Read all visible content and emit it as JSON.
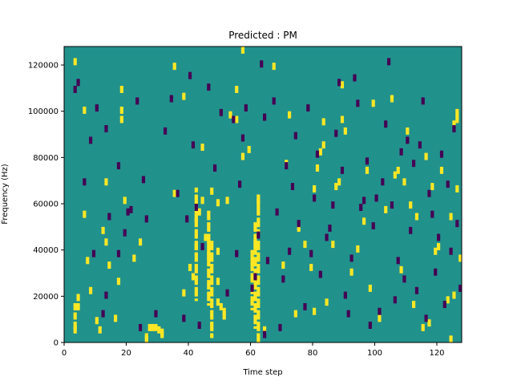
{
  "chart_data": {
    "type": "heatmap",
    "title": "Predicted : PM",
    "xlabel": "Time step",
    "ylabel": "Frequency (Hz)",
    "xlim": [
      0,
      128
    ],
    "ylim": [
      0,
      128000
    ],
    "x_ticks": [
      "0",
      "20",
      "40",
      "60",
      "80",
      "100",
      "120"
    ],
    "y_ticks": [
      "0",
      "20000",
      "40000",
      "60000",
      "80000",
      "100000",
      "120000"
    ],
    "grid": false,
    "legend": "none",
    "rows": 128,
    "cols": 128,
    "colors": {
      "background": "#21918c",
      "low": "#440154",
      "high": "#fde725"
    },
    "high_cells": [
      [
        3,
        120
      ],
      [
        3,
        4
      ],
      [
        3,
        6
      ],
      [
        3,
        10
      ],
      [
        3,
        14
      ],
      [
        4,
        14
      ],
      [
        4,
        18
      ],
      [
        6,
        99
      ],
      [
        6,
        54
      ],
      [
        7,
        34
      ],
      [
        8,
        21
      ],
      [
        10,
        8
      ],
      [
        11,
        4
      ],
      [
        12,
        47
      ],
      [
        13,
        68
      ],
      [
        13,
        42
      ],
      [
        14,
        32
      ],
      [
        16,
        9
      ],
      [
        17,
        25
      ],
      [
        18,
        99
      ],
      [
        18,
        108
      ],
      [
        18,
        95
      ],
      [
        19,
        60
      ],
      [
        22,
        35
      ],
      [
        24,
        42
      ],
      [
        26,
        0
      ],
      [
        26,
        1
      ],
      [
        27,
        5
      ],
      [
        28,
        5
      ],
      [
        29,
        5
      ],
      [
        30,
        4
      ],
      [
        31,
        2
      ],
      [
        31,
        3
      ],
      [
        35,
        63
      ],
      [
        35,
        118
      ],
      [
        38,
        105
      ],
      [
        38,
        20
      ],
      [
        40,
        31
      ],
      [
        41,
        27
      ],
      [
        42,
        40
      ],
      [
        42,
        52
      ],
      [
        43,
        55
      ],
      [
        44,
        83
      ],
      [
        44,
        60
      ],
      [
        45,
        44
      ],
      [
        46,
        42
      ],
      [
        46,
        36
      ],
      [
        47,
        64
      ],
      [
        49,
        16
      ],
      [
        49,
        59
      ],
      [
        49,
        38
      ],
      [
        49,
        25
      ],
      [
        50,
        14
      ],
      [
        51,
        12
      ],
      [
        51,
        10
      ],
      [
        52,
        60
      ],
      [
        53,
        97
      ],
      [
        55,
        108
      ],
      [
        55,
        95
      ],
      [
        57,
        125
      ],
      [
        57,
        79
      ],
      [
        59,
        82
      ],
      [
        60,
        33
      ],
      [
        61,
        40
      ],
      [
        61,
        42
      ],
      [
        62,
        59
      ],
      [
        64,
        4
      ],
      [
        67,
        118
      ],
      [
        70,
        32
      ],
      [
        71,
        76
      ],
      [
        72,
        97
      ],
      [
        74,
        11
      ],
      [
        75,
        48
      ],
      [
        77,
        41
      ],
      [
        79,
        31
      ],
      [
        80,
        12
      ],
      [
        80,
        65
      ],
      [
        81,
        74
      ],
      [
        82,
        81
      ],
      [
        83,
        84
      ],
      [
        83,
        94
      ],
      [
        84,
        16
      ],
      [
        86,
        41
      ],
      [
        87,
        66
      ],
      [
        88,
        68
      ],
      [
        89,
        95
      ],
      [
        89,
        110
      ],
      [
        90,
        90
      ],
      [
        92,
        29
      ],
      [
        94,
        39
      ],
      [
        96,
        51
      ],
      [
        97,
        73
      ],
      [
        98,
        22
      ],
      [
        99,
        102
      ],
      [
        101,
        9
      ],
      [
        103,
        56
      ],
      [
        105,
        104
      ],
      [
        106,
        71
      ],
      [
        107,
        73
      ],
      [
        108,
        30
      ],
      [
        109,
        68
      ],
      [
        110,
        90
      ],
      [
        111,
        58
      ],
      [
        112,
        15
      ],
      [
        113,
        53
      ],
      [
        115,
        5
      ],
      [
        116,
        79
      ],
      [
        117,
        7
      ],
      [
        118,
        66
      ],
      [
        119,
        38
      ],
      [
        120,
        40
      ],
      [
        121,
        73
      ],
      [
        123,
        17
      ],
      [
        124,
        0
      ],
      [
        124,
        53
      ],
      [
        125,
        19
      ],
      [
        125,
        93
      ],
      [
        126,
        98
      ],
      [
        126,
        95
      ],
      [
        126,
        65
      ],
      [
        127,
        35
      ]
    ],
    "low_cells": [
      [
        3,
        108
      ],
      [
        4,
        111
      ],
      [
        6,
        68
      ],
      [
        8,
        86
      ],
      [
        9,
        37
      ],
      [
        10,
        100
      ],
      [
        12,
        11
      ],
      [
        13,
        19
      ],
      [
        13,
        91
      ],
      [
        14,
        53
      ],
      [
        17,
        37
      ],
      [
        17,
        75
      ],
      [
        19,
        46
      ],
      [
        20,
        55
      ],
      [
        21,
        56
      ],
      [
        23,
        103
      ],
      [
        24,
        5
      ],
      [
        25,
        69
      ],
      [
        26,
        52
      ],
      [
        29,
        11
      ],
      [
        32,
        90
      ],
      [
        34,
        104
      ],
      [
        36,
        63
      ],
      [
        38,
        9
      ],
      [
        39,
        52
      ],
      [
        40,
        114
      ],
      [
        41,
        84
      ],
      [
        42,
        57
      ],
      [
        43,
        6
      ],
      [
        44,
        40
      ],
      [
        46,
        109
      ],
      [
        48,
        74
      ],
      [
        50,
        98
      ],
      [
        52,
        20
      ],
      [
        54,
        95
      ],
      [
        55,
        37
      ],
      [
        56,
        67
      ],
      [
        57,
        87
      ],
      [
        58,
        100
      ],
      [
        60,
        22
      ],
      [
        61,
        27
      ],
      [
        62,
        45
      ],
      [
        63,
        119
      ],
      [
        64,
        2
      ],
      [
        64,
        96
      ],
      [
        65,
        34
      ],
      [
        67,
        103
      ],
      [
        68,
        55
      ],
      [
        69,
        5
      ],
      [
        70,
        26
      ],
      [
        71,
        75
      ],
      [
        72,
        38
      ],
      [
        73,
        66
      ],
      [
        74,
        88
      ],
      [
        75,
        50
      ],
      [
        77,
        14
      ],
      [
        78,
        100
      ],
      [
        79,
        37
      ],
      [
        80,
        61
      ],
      [
        81,
        80
      ],
      [
        82,
        28
      ],
      [
        84,
        44
      ],
      [
        85,
        48
      ],
      [
        86,
        58
      ],
      [
        87,
        89
      ],
      [
        88,
        111
      ],
      [
        89,
        73
      ],
      [
        90,
        19
      ],
      [
        91,
        11
      ],
      [
        92,
        35
      ],
      [
        93,
        113
      ],
      [
        94,
        102
      ],
      [
        95,
        57
      ],
      [
        96,
        60
      ],
      [
        97,
        77
      ],
      [
        98,
        6
      ],
      [
        99,
        49
      ],
      [
        100,
        61
      ],
      [
        101,
        12
      ],
      [
        102,
        68
      ],
      [
        103,
        93
      ],
      [
        104,
        120
      ],
      [
        105,
        58
      ],
      [
        106,
        17
      ],
      [
        107,
        34
      ],
      [
        108,
        81
      ],
      [
        109,
        26
      ],
      [
        110,
        86
      ],
      [
        111,
        47
      ],
      [
        112,
        76
      ],
      [
        113,
        21
      ],
      [
        114,
        84
      ],
      [
        115,
        103
      ],
      [
        116,
        9
      ],
      [
        117,
        63
      ],
      [
        118,
        54
      ],
      [
        119,
        29
      ],
      [
        120,
        44
      ],
      [
        121,
        80
      ],
      [
        122,
        15
      ],
      [
        123,
        67
      ],
      [
        124,
        38
      ],
      [
        125,
        91
      ],
      [
        126,
        50
      ],
      [
        127,
        22
      ]
    ],
    "high_streaks": [
      {
        "col": 46,
        "row_start": 16,
        "row_end": 56
      },
      {
        "col": 47,
        "row_start": 2,
        "row_end": 44
      },
      {
        "col": 61,
        "row_start": 6,
        "row_end": 52
      },
      {
        "col": 62,
        "row_start": 0,
        "row_end": 64
      },
      {
        "col": 60,
        "row_start": 14,
        "row_end": 40
      },
      {
        "col": 42,
        "row_start": 18,
        "row_end": 66
      }
    ]
  }
}
